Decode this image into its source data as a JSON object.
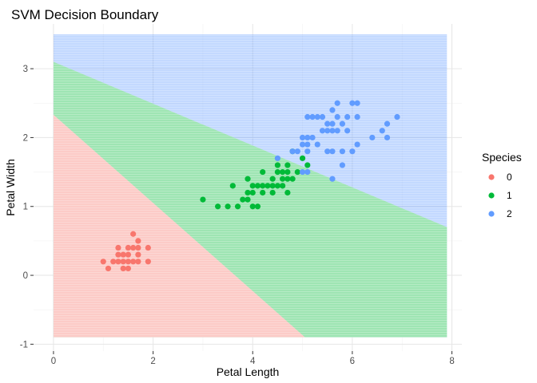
{
  "chart_data": {
    "type": "scatter",
    "title": "SVM Decision Boundary",
    "xlabel": "Petal Length",
    "ylabel": "Petal Width",
    "xlim": [
      -0.4,
      8.2
    ],
    "ylim": [
      -1.1,
      3.65
    ],
    "x_ticks": [
      0,
      2,
      4,
      6,
      8
    ],
    "y_ticks": [
      -1,
      0,
      1,
      2,
      3
    ],
    "grid": true,
    "legend": {
      "title": "Species",
      "placement": "right"
    },
    "regions": {
      "extent": {
        "x": [
          0,
          7.9
        ],
        "y": [
          -0.9,
          3.5
        ]
      },
      "boundary_0_1": [
        [
          0,
          2.33
        ],
        [
          5.05,
          -0.9
        ]
      ],
      "boundary_1_2": [
        [
          0,
          3.1
        ],
        [
          7.9,
          0.7
        ]
      ],
      "colors": {
        "0": "#F8766D",
        "1": "#00BA38",
        "2": "#619CFF"
      },
      "opacity": 0.38
    },
    "series": [
      {
        "name": "0",
        "color": "#F8766D",
        "points": [
          [
            1.0,
            0.2
          ],
          [
            1.1,
            0.1
          ],
          [
            1.2,
            0.2
          ],
          [
            1.3,
            0.2
          ],
          [
            1.3,
            0.3
          ],
          [
            1.3,
            0.4
          ],
          [
            1.4,
            0.1
          ],
          [
            1.4,
            0.2
          ],
          [
            1.4,
            0.3
          ],
          [
            1.5,
            0.1
          ],
          [
            1.5,
            0.2
          ],
          [
            1.5,
            0.3
          ],
          [
            1.5,
            0.4
          ],
          [
            1.6,
            0.2
          ],
          [
            1.6,
            0.4
          ],
          [
            1.6,
            0.6
          ],
          [
            1.7,
            0.2
          ],
          [
            1.7,
            0.3
          ],
          [
            1.7,
            0.4
          ],
          [
            1.7,
            0.5
          ],
          [
            1.9,
            0.2
          ],
          [
            1.9,
            0.4
          ]
        ]
      },
      {
        "name": "1",
        "color": "#00BA38",
        "points": [
          [
            3.0,
            1.1
          ],
          [
            3.3,
            1.0
          ],
          [
            3.5,
            1.0
          ],
          [
            3.6,
            1.3
          ],
          [
            3.7,
            1.0
          ],
          [
            3.8,
            1.1
          ],
          [
            3.9,
            1.1
          ],
          [
            3.9,
            1.2
          ],
          [
            3.9,
            1.4
          ],
          [
            4.0,
            1.0
          ],
          [
            4.0,
            1.2
          ],
          [
            4.0,
            1.3
          ],
          [
            4.1,
            1.0
          ],
          [
            4.1,
            1.3
          ],
          [
            4.2,
            1.2
          ],
          [
            4.2,
            1.3
          ],
          [
            4.2,
            1.5
          ],
          [
            4.3,
            1.3
          ],
          [
            4.4,
            1.2
          ],
          [
            4.4,
            1.3
          ],
          [
            4.4,
            1.4
          ],
          [
            4.5,
            1.3
          ],
          [
            4.5,
            1.5
          ],
          [
            4.5,
            1.6
          ],
          [
            4.6,
            1.3
          ],
          [
            4.6,
            1.4
          ],
          [
            4.6,
            1.5
          ],
          [
            4.7,
            1.2
          ],
          [
            4.7,
            1.4
          ],
          [
            4.7,
            1.5
          ],
          [
            4.7,
            1.6
          ],
          [
            4.8,
            1.4
          ],
          [
            4.8,
            1.8
          ],
          [
            4.9,
            1.5
          ],
          [
            5.0,
            1.7
          ],
          [
            5.1,
            1.6
          ]
        ]
      },
      {
        "name": "2",
        "color": "#619CFF",
        "points": [
          [
            4.5,
            1.7
          ],
          [
            4.8,
            1.8
          ],
          [
            4.9,
            1.8
          ],
          [
            5.0,
            1.5
          ],
          [
            5.0,
            1.9
          ],
          [
            5.0,
            2.0
          ],
          [
            5.1,
            1.5
          ],
          [
            5.1,
            1.8
          ],
          [
            5.1,
            1.9
          ],
          [
            5.1,
            2.0
          ],
          [
            5.1,
            2.3
          ],
          [
            5.2,
            2.0
          ],
          [
            5.2,
            2.3
          ],
          [
            5.3,
            1.9
          ],
          [
            5.3,
            2.3
          ],
          [
            5.4,
            2.1
          ],
          [
            5.4,
            2.3
          ],
          [
            5.5,
            1.8
          ],
          [
            5.5,
            2.1
          ],
          [
            5.5,
            2.2
          ],
          [
            5.6,
            1.4
          ],
          [
            5.6,
            1.8
          ],
          [
            5.6,
            2.1
          ],
          [
            5.6,
            2.2
          ],
          [
            5.6,
            2.4
          ],
          [
            5.7,
            2.1
          ],
          [
            5.7,
            2.3
          ],
          [
            5.7,
            2.5
          ],
          [
            5.8,
            1.6
          ],
          [
            5.8,
            1.8
          ],
          [
            5.8,
            2.2
          ],
          [
            5.9,
            2.1
          ],
          [
            5.9,
            2.3
          ],
          [
            6.0,
            1.8
          ],
          [
            6.0,
            2.5
          ],
          [
            6.1,
            1.9
          ],
          [
            6.1,
            2.3
          ],
          [
            6.1,
            2.5
          ],
          [
            6.4,
            2.0
          ],
          [
            6.6,
            2.1
          ],
          [
            6.7,
            2.0
          ],
          [
            6.7,
            2.2
          ],
          [
            6.9,
            2.3
          ]
        ]
      }
    ]
  }
}
